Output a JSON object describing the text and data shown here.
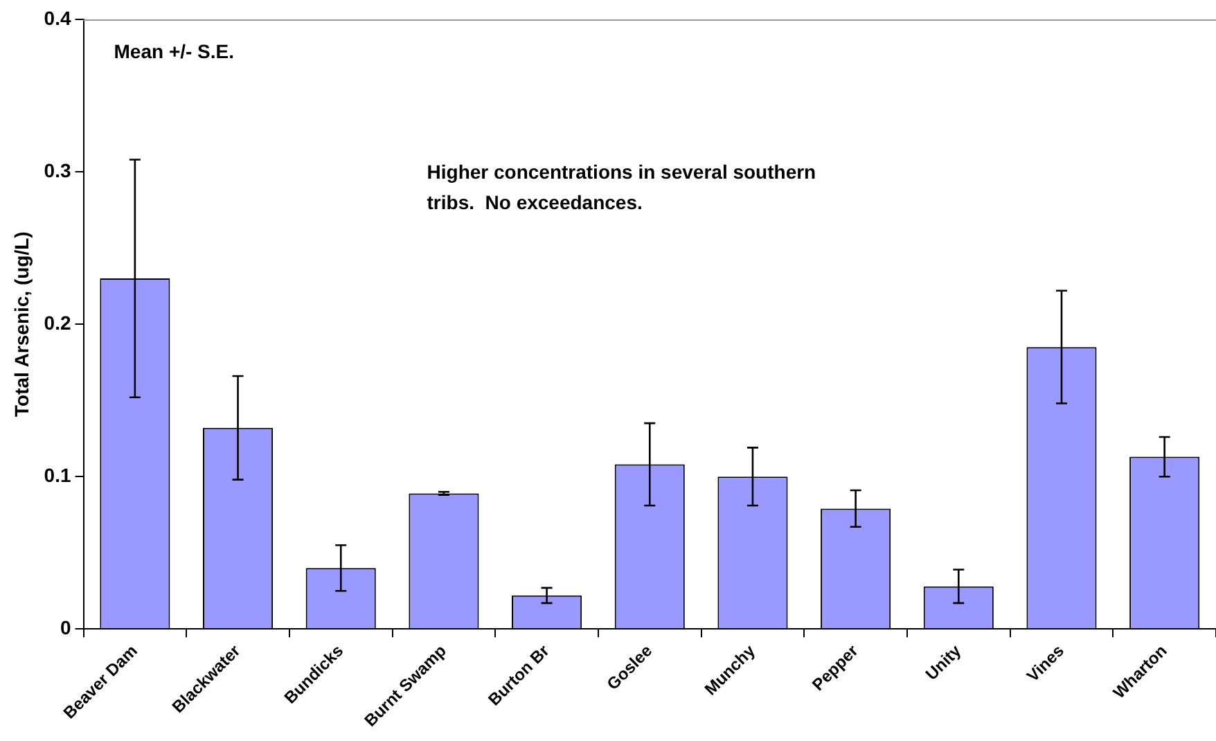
{
  "chart_data": {
    "type": "bar",
    "ylabel": "Total Arsenic, (ug/L)",
    "categories": [
      "Beaver Dam",
      "Blackwater",
      "Bundicks",
      "Burnt Swamp",
      "Burton Br",
      "Goslee",
      "Munchy",
      "Pepper",
      "Unity",
      "Vines",
      "Wharton"
    ],
    "values": [
      0.23,
      0.132,
      0.04,
      0.089,
      0.022,
      0.108,
      0.1,
      0.079,
      0.028,
      0.185,
      0.113
    ],
    "errors": [
      0.078,
      0.034,
      0.015,
      0.001,
      0.005,
      0.027,
      0.019,
      0.012,
      0.011,
      0.037,
      0.013
    ],
    "color": "#9999ff",
    "ylim": [
      0,
      0.4
    ],
    "yticks": [
      0,
      0.1,
      0.2,
      0.3,
      0.4
    ],
    "grid": false,
    "legend": false,
    "annotations": [
      "Mean +/- S.E.",
      "Higher concentrations in several southern tribs.  No exceedances."
    ]
  }
}
